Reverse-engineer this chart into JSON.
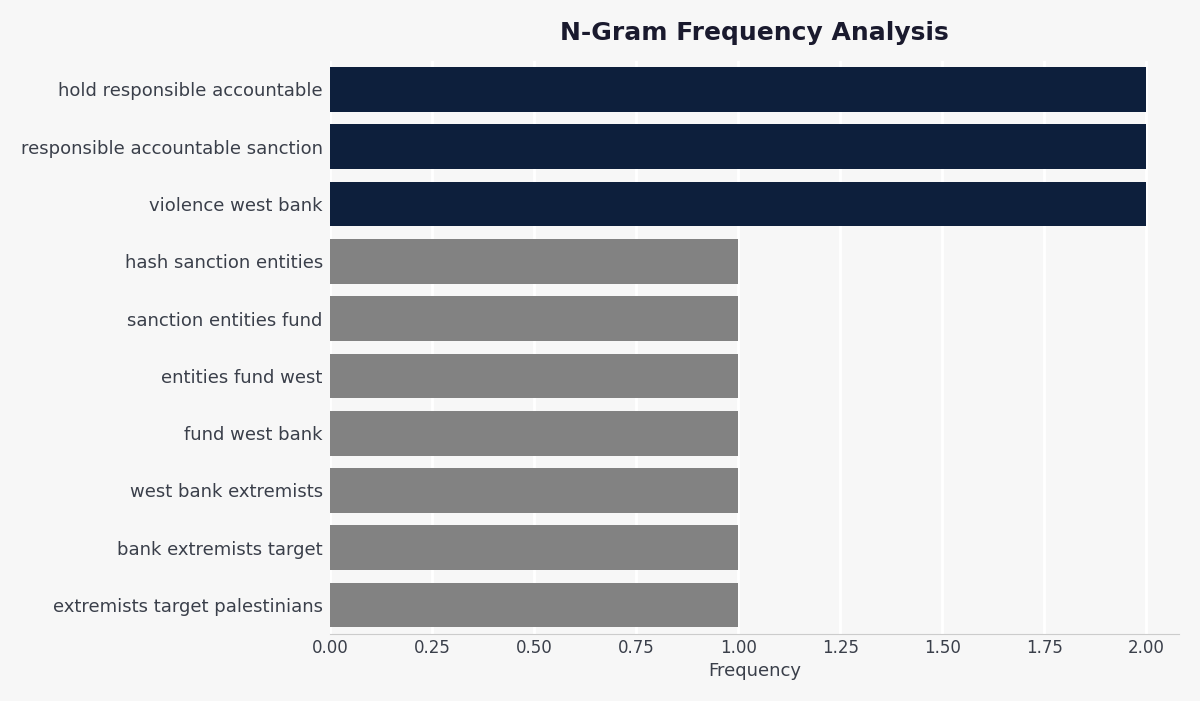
{
  "title": "N-Gram Frequency Analysis",
  "xlabel": "Frequency",
  "categories": [
    "extremists target palestinians",
    "bank extremists target",
    "west bank extremists",
    "fund west bank",
    "entities fund west",
    "sanction entities fund",
    "hash sanction entities",
    "violence west bank",
    "responsible accountable sanction",
    "hold responsible accountable"
  ],
  "values": [
    1,
    1,
    1,
    1,
    1,
    1,
    1,
    2,
    2,
    2
  ],
  "bar_colors": [
    "#828282",
    "#828282",
    "#828282",
    "#828282",
    "#828282",
    "#828282",
    "#828282",
    "#0d1f3c",
    "#0d1f3c",
    "#0d1f3c"
  ],
  "background_color": "#f7f7f7",
  "xlim": [
    0,
    2.08
  ],
  "xticks": [
    0.0,
    0.25,
    0.5,
    0.75,
    1.0,
    1.25,
    1.5,
    1.75,
    2.0
  ],
  "xtick_labels": [
    "0.00",
    "0.25",
    "0.50",
    "0.75",
    "1.00",
    "1.25",
    "1.50",
    "1.75",
    "2.00"
  ],
  "title_fontsize": 18,
  "label_fontsize": 13,
  "tick_fontsize": 12,
  "bar_height": 0.78,
  "grid_color": "#ffffff",
  "text_color": "#3a3f4a",
  "spine_color": "#cccccc"
}
